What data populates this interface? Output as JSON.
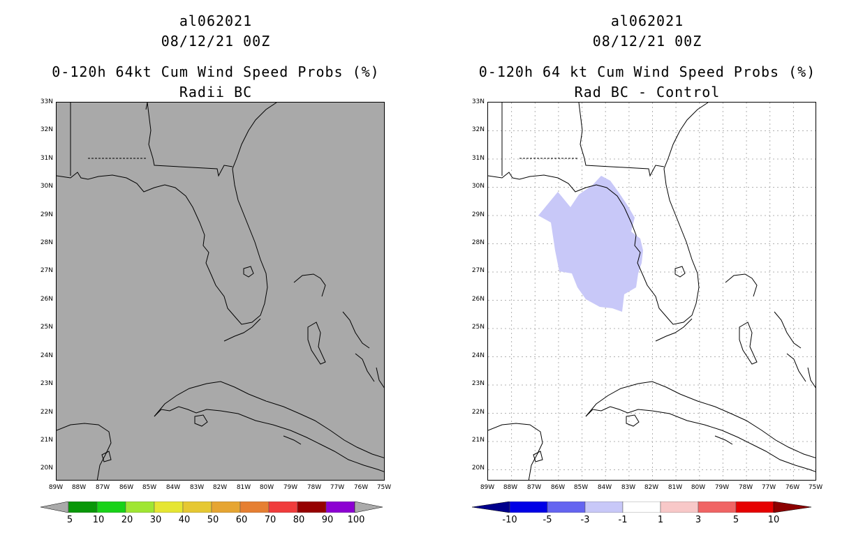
{
  "left": {
    "title1": "al062021",
    "title2": "08/12/21 00Z",
    "title3": "0-120h 64kt Cum Wind Speed Probs (%)",
    "title4": "Radii BC",
    "colorbar": {
      "labels": [
        "5",
        "10",
        "20",
        "30",
        "40",
        "50",
        "60",
        "70",
        "80",
        "90",
        "100"
      ],
      "colors": [
        "#aaaaaa",
        "#089708",
        "#18d218",
        "#a0e632",
        "#e6e632",
        "#e6c832",
        "#e6a532",
        "#e67f32",
        "#f03c3c",
        "#960000",
        "#8c00d2",
        "#aaaaaa"
      ]
    }
  },
  "right": {
    "title1": "al062021",
    "title2": "08/12/21 00Z",
    "title3": "0-120h 64 kt Cum Wind Speed Probs (%)",
    "title4": "Rad BC - Control",
    "colorbar": {
      "labels": [
        "-10",
        "-5",
        "-3",
        "-1",
        "1",
        "3",
        "5",
        "10"
      ],
      "colors": [
        "#00008c",
        "#0000e6",
        "#6464f0",
        "#c8c8f8",
        "#ffffff",
        "#f8c8c8",
        "#f06464",
        "#e60000",
        "#8c0000"
      ]
    }
  },
  "axes": {
    "lat_labels": [
      "33N",
      "32N",
      "31N",
      "30N",
      "29N",
      "28N",
      "27N",
      "26N",
      "25N",
      "24N",
      "23N",
      "22N",
      "21N",
      "20N"
    ],
    "lon_labels": [
      "89W",
      "88W",
      "87W",
      "86W",
      "85W",
      "84W",
      "83W",
      "82W",
      "81W",
      "80W",
      "79W",
      "78W",
      "77W",
      "76W",
      "75W"
    ]
  },
  "map_colors": {
    "left_background": "#a9a9a9",
    "anomaly_fill": "#c8c8f8",
    "grid": "#b0b0b0",
    "coast": "#000000"
  }
}
